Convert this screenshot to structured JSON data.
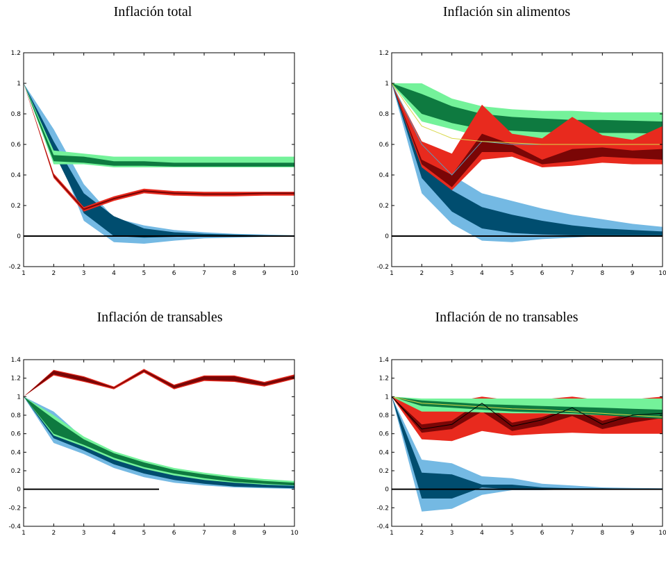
{
  "colors": {
    "light_blue": "#74b9e3",
    "dark_blue": "#004d6f",
    "light_green": "#74f29a",
    "dark_green": "#0e7a40",
    "light_red": "#e82a1e",
    "dark_red": "#7a0606",
    "thin_blue": "#5f97b8",
    "thin_yellow": "#d8d84a",
    "zero_line": "#000000"
  },
  "chart_data": [
    {
      "type": "area",
      "title": "Inflación total",
      "x": [
        1,
        2,
        3,
        4,
        5,
        6,
        7,
        8,
        9,
        10
      ],
      "xticks": [
        "1",
        "2",
        "3",
        "4",
        "5",
        "6",
        "7",
        "8",
        "9",
        "10"
      ],
      "yticks": [
        "-0.2",
        "0",
        "0.2",
        "0.4",
        "0.6",
        "0.8",
        "1",
        "1.2"
      ],
      "ylim": [
        -0.2,
        1.2
      ],
      "series": [
        {
          "color": "light_blue",
          "upper": [
            1,
            0.7,
            0.34,
            0.12,
            0.07,
            0.04,
            0.025,
            0.015,
            0.01,
            0.005
          ],
          "lower": [
            1,
            0.6,
            0.1,
            -0.04,
            -0.05,
            -0.03,
            -0.015,
            -0.01,
            -0.005,
            0
          ]
        },
        {
          "color": "dark_blue",
          "upper": [
            1,
            0.62,
            0.28,
            0.13,
            0.05,
            0.025,
            0.015,
            0.01,
            0.005,
            0.002
          ],
          "lower": [
            1,
            0.55,
            0.15,
            0.0,
            -0.01,
            -0.005,
            0,
            0,
            0,
            0
          ]
        },
        {
          "color": "light_green",
          "upper": [
            1,
            0.56,
            0.54,
            0.52,
            0.52,
            0.52,
            0.52,
            0.52,
            0.52,
            0.52
          ],
          "lower": [
            1,
            0.47,
            0.47,
            0.45,
            0.45,
            0.45,
            0.45,
            0.45,
            0.45,
            0.45
          ]
        },
        {
          "color": "dark_green",
          "upper": [
            1,
            0.53,
            0.52,
            0.49,
            0.49,
            0.48,
            0.48,
            0.48,
            0.48,
            0.48
          ],
          "lower": [
            1,
            0.49,
            0.48,
            0.46,
            0.46,
            0.455,
            0.455,
            0.455,
            0.455,
            0.455
          ]
        },
        {
          "color": "light_red",
          "upper": [
            1,
            0.41,
            0.19,
            0.26,
            0.31,
            0.295,
            0.29,
            0.29,
            0.29,
            0.29
          ],
          "lower": [
            1,
            0.38,
            0.16,
            0.23,
            0.28,
            0.265,
            0.26,
            0.26,
            0.265,
            0.265
          ]
        },
        {
          "color": "dark_red",
          "upper": [
            1,
            0.4,
            0.18,
            0.25,
            0.3,
            0.285,
            0.28,
            0.28,
            0.285,
            0.285
          ],
          "lower": [
            1,
            0.39,
            0.17,
            0.24,
            0.29,
            0.275,
            0.27,
            0.27,
            0.275,
            0.275
          ]
        }
      ],
      "lines": [],
      "zero_line": {
        "x": [
          1,
          10
        ]
      }
    },
    {
      "type": "area",
      "title": "Inflación sin alimentos",
      "x": [
        1,
        2,
        3,
        4,
        5,
        6,
        7,
        8,
        9,
        10
      ],
      "xticks": [
        "1",
        "2",
        "3",
        "4",
        "5",
        "6",
        "7",
        "8",
        "9",
        "10"
      ],
      "yticks": [
        "-0.2",
        "0",
        "0.2",
        "0.4",
        "0.6",
        "0.8",
        "1",
        "1.2"
      ],
      "ylim": [
        -0.2,
        1.2
      ],
      "series": [
        {
          "color": "light_blue",
          "upper": [
            1,
            0.62,
            0.4,
            0.28,
            0.23,
            0.18,
            0.14,
            0.11,
            0.08,
            0.06
          ],
          "lower": [
            1,
            0.28,
            0.08,
            -0.03,
            -0.04,
            -0.02,
            -0.01,
            0,
            0,
            0
          ]
        },
        {
          "color": "dark_blue",
          "upper": [
            1,
            0.5,
            0.3,
            0.19,
            0.14,
            0.1,
            0.07,
            0.05,
            0.04,
            0.03
          ],
          "lower": [
            1,
            0.38,
            0.16,
            0.05,
            0.02,
            0.01,
            0.005,
            0.005,
            0.005,
            0.005
          ]
        },
        {
          "color": "light_green",
          "upper": [
            1,
            1.0,
            0.9,
            0.85,
            0.83,
            0.82,
            0.82,
            0.81,
            0.81,
            0.81
          ],
          "lower": [
            1,
            0.75,
            0.7,
            0.65,
            0.63,
            0.62,
            0.62,
            0.62,
            0.62,
            0.62
          ]
        },
        {
          "color": "dark_green",
          "upper": [
            1,
            0.93,
            0.85,
            0.8,
            0.78,
            0.77,
            0.76,
            0.76,
            0.755,
            0.75
          ],
          "lower": [
            1,
            0.8,
            0.74,
            0.7,
            0.69,
            0.68,
            0.68,
            0.675,
            0.675,
            0.67
          ]
        },
        {
          "color": "light_red",
          "upper": [
            1,
            0.62,
            0.54,
            0.86,
            0.67,
            0.64,
            0.78,
            0.66,
            0.63,
            0.72
          ],
          "lower": [
            1,
            0.45,
            0.3,
            0.5,
            0.52,
            0.45,
            0.46,
            0.48,
            0.47,
            0.47
          ]
        },
        {
          "color": "dark_red",
          "upper": [
            1,
            0.5,
            0.4,
            0.67,
            0.6,
            0.5,
            0.57,
            0.58,
            0.56,
            0.57
          ],
          "lower": [
            1,
            0.47,
            0.32,
            0.55,
            0.55,
            0.47,
            0.49,
            0.52,
            0.51,
            0.5
          ]
        }
      ],
      "lines": [
        {
          "color": "thin_blue",
          "values": [
            1,
            0.6,
            0.4,
            0.62,
            0.6,
            0.6,
            0.6,
            0.6,
            0.6,
            0.6
          ]
        },
        {
          "color": "thin_yellow",
          "values": [
            1,
            0.72,
            0.64,
            0.62,
            0.61,
            0.6,
            0.6,
            0.6,
            0.6,
            0.6
          ]
        }
      ],
      "zero_line": {
        "x": [
          1,
          10
        ]
      }
    },
    {
      "type": "area",
      "title": "Inflación de transables",
      "x": [
        1,
        2,
        3,
        4,
        5,
        6,
        7,
        8,
        9,
        10
      ],
      "xticks": [
        "1",
        "2",
        "3",
        "4",
        "5",
        "6",
        "7",
        "8",
        "9",
        "10"
      ],
      "yticks": [
        "-0.4",
        "-0.2",
        "0",
        "0.2",
        "0.4",
        "0.6",
        "0.8",
        "1",
        "1.2",
        "1.4"
      ],
      "ylim": [
        -0.4,
        1.4
      ],
      "series": [
        {
          "color": "light_blue",
          "upper": [
            1,
            0.84,
            0.55,
            0.38,
            0.27,
            0.2,
            0.14,
            0.1,
            0.07,
            0.05
          ],
          "lower": [
            1,
            0.5,
            0.38,
            0.23,
            0.13,
            0.07,
            0.04,
            0.02,
            0.01,
            0.005
          ]
        },
        {
          "color": "dark_blue",
          "upper": [
            1,
            0.7,
            0.5,
            0.34,
            0.24,
            0.17,
            0.12,
            0.08,
            0.05,
            0.035
          ],
          "lower": [
            1,
            0.55,
            0.42,
            0.27,
            0.17,
            0.1,
            0.06,
            0.03,
            0.02,
            0.01
          ]
        },
        {
          "color": "light_green",
          "upper": [
            1,
            0.8,
            0.57,
            0.41,
            0.31,
            0.23,
            0.18,
            0.14,
            0.11,
            0.09
          ],
          "lower": [
            1,
            0.58,
            0.46,
            0.32,
            0.22,
            0.15,
            0.1,
            0.07,
            0.05,
            0.04
          ]
        },
        {
          "color": "dark_green",
          "upper": [
            1,
            0.76,
            0.54,
            0.39,
            0.29,
            0.21,
            0.16,
            0.12,
            0.09,
            0.07
          ],
          "lower": [
            1,
            0.6,
            0.48,
            0.34,
            0.24,
            0.17,
            0.12,
            0.08,
            0.06,
            0.04
          ]
        },
        {
          "color": "light_red",
          "upper": [
            1,
            1.29,
            1.22,
            1.11,
            1.3,
            1.13,
            1.23,
            1.23,
            1.16,
            1.24
          ],
          "lower": [
            1,
            1.23,
            1.16,
            1.08,
            1.26,
            1.08,
            1.17,
            1.16,
            1.11,
            1.19
          ]
        },
        {
          "color": "dark_red",
          "upper": [
            1,
            1.28,
            1.21,
            1.1,
            1.29,
            1.12,
            1.22,
            1.22,
            1.15,
            1.23
          ],
          "lower": [
            1,
            1.24,
            1.17,
            1.09,
            1.27,
            1.09,
            1.18,
            1.17,
            1.12,
            1.2
          ]
        }
      ],
      "lines": [],
      "zero_line": {
        "x": [
          1,
          5.5
        ]
      }
    },
    {
      "type": "area",
      "title": "Inflación de no transables",
      "x": [
        1,
        2,
        3,
        4,
        5,
        6,
        7,
        8,
        9,
        10
      ],
      "xticks": [
        "1",
        "2",
        "3",
        "4",
        "5",
        "6",
        "7",
        "8",
        "9",
        "10"
      ],
      "yticks": [
        "-0.4",
        "-0.2",
        "0",
        "0.2",
        "0.4",
        "0.6",
        "0.8",
        "1",
        "1.2",
        "1.4"
      ],
      "ylim": [
        -0.4,
        1.4
      ],
      "series": [
        {
          "color": "light_blue",
          "upper": [
            1,
            0.32,
            0.28,
            0.14,
            0.12,
            0.06,
            0.04,
            0.02,
            0.015,
            0.01
          ],
          "lower": [
            1,
            -0.24,
            -0.21,
            -0.06,
            -0.01,
            -0.01,
            0,
            0,
            0,
            0
          ]
        },
        {
          "color": "dark_blue",
          "upper": [
            1,
            0.18,
            0.16,
            0.05,
            0.05,
            0.02,
            0.01,
            0.01,
            0.005,
            0.005
          ],
          "lower": [
            1,
            -0.1,
            -0.1,
            0.02,
            0.0,
            0.0,
            0,
            0,
            0,
            0
          ]
        },
        {
          "color": "light_red",
          "upper": [
            1,
            0.95,
            0.94,
            1.0,
            0.96,
            0.97,
            1.0,
            0.96,
            0.97,
            1.0
          ],
          "lower": [
            1,
            0.54,
            0.52,
            0.63,
            0.58,
            0.6,
            0.61,
            0.6,
            0.6,
            0.6
          ]
        },
        {
          "color": "dark_red",
          "upper": [
            1,
            0.7,
            0.74,
            0.96,
            0.72,
            0.78,
            0.89,
            0.74,
            0.82,
            0.86
          ],
          "lower": [
            1,
            0.61,
            0.65,
            0.84,
            0.63,
            0.69,
            0.79,
            0.65,
            0.72,
            0.77
          ]
        },
        {
          "color": "light_green",
          "upper": [
            1,
            0.98,
            0.98,
            0.98,
            0.98,
            0.98,
            0.98,
            0.98,
            0.98,
            0.98
          ],
          "lower": [
            1,
            0.84,
            0.84,
            0.83,
            0.82,
            0.82,
            0.81,
            0.8,
            0.79,
            0.78
          ]
        },
        {
          "color": "dark_green",
          "upper": [
            1,
            0.96,
            0.94,
            0.92,
            0.91,
            0.9,
            0.89,
            0.88,
            0.87,
            0.86
          ],
          "lower": [
            1,
            0.9,
            0.88,
            0.86,
            0.84,
            0.83,
            0.82,
            0.8,
            0.78,
            0.76
          ]
        }
      ],
      "lines": [
        {
          "color": "thin_yellow",
          "values": [
            1,
            0.93,
            0.91,
            0.89,
            0.87,
            0.86,
            0.84,
            0.82,
            0.8,
            0.78
          ]
        },
        {
          "color": "zero_line",
          "values": [
            1,
            0.65,
            0.7,
            0.93,
            0.68,
            0.75,
            0.88,
            0.7,
            0.8,
            0.82
          ]
        }
      ],
      "zero_line": {
        "x": [
          1,
          10
        ]
      }
    }
  ]
}
